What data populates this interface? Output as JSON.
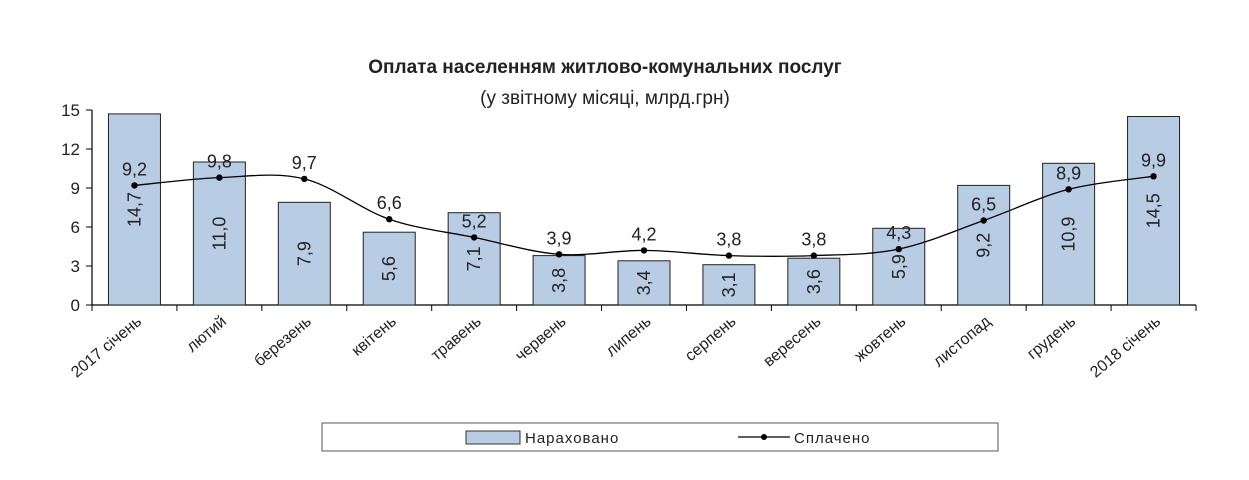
{
  "chart_data": {
    "type": "bar",
    "title": "Оплата населенням житлово-комунальних послуг",
    "subtitle": "(у звітному місяці, млрд.грн)",
    "categories": [
      "2017 січень",
      "лютий",
      "березень",
      "квітень",
      "травень",
      "червень",
      "липень",
      "серпень",
      "вересень",
      "жовтень",
      "листопад",
      "грудень",
      "2018 січень"
    ],
    "series": [
      {
        "name": "Нараховано",
        "kind": "bar",
        "color": "#b8cce4",
        "values": [
          14.7,
          11.0,
          7.9,
          5.6,
          7.1,
          3.8,
          3.4,
          3.1,
          3.6,
          5.9,
          9.2,
          10.9,
          14.5
        ],
        "labels": [
          "14,7",
          "11,0",
          "7,9",
          "5,6",
          "7,1",
          "3,8",
          "3,4",
          "3,1",
          "3,6",
          "5,9",
          "9,2",
          "10,9",
          "14,5"
        ]
      },
      {
        "name": "Сплачено",
        "kind": "line",
        "color": "#000000",
        "values": [
          9.2,
          9.8,
          9.7,
          6.6,
          5.2,
          3.9,
          4.2,
          3.8,
          3.8,
          4.3,
          6.5,
          8.9,
          9.9
        ],
        "labels": [
          "9,2",
          "9,8",
          "9,7",
          "6,6",
          "5,2",
          "3,9",
          "4,2",
          "3,8",
          "3,8",
          "4,3",
          "6,5",
          "8,9",
          "9,9"
        ]
      }
    ],
    "yticks": [
      "0",
      "3",
      "6",
      "9",
      "12",
      "15"
    ],
    "ylim": [
      0,
      15
    ],
    "grid": false,
    "legend_position": "bottom"
  }
}
